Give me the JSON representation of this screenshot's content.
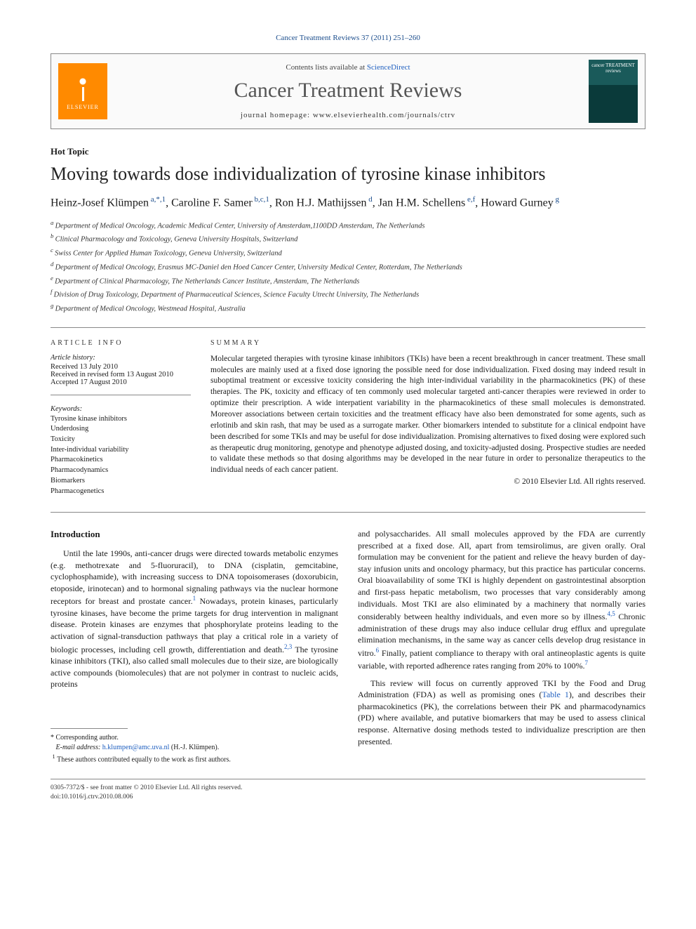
{
  "citation": "Cancer Treatment Reviews 37 (2011) 251–260",
  "header": {
    "contents_prefix": "Contents lists available at ",
    "sciencedirect": "ScienceDirect",
    "journal": "Cancer Treatment Reviews",
    "homepage_prefix": "journal homepage: ",
    "homepage_url": "www.elsevierhealth.com/journals/ctrv",
    "elsevier_label": "ELSEVIER",
    "cover_text": "cancer TREATMENT reviews"
  },
  "section_label": "Hot Topic",
  "title": "Moving towards dose individualization of tyrosine kinase inhibitors",
  "authors_html": "Heinz-Josef Klümpen|a,*,1|, Caroline F. Samer|b,c,1|, Ron H.J. Mathijssen|d|, Jan H.M. Schellens|e,f|, Howard Gurney|g|",
  "authors": [
    {
      "name": "Heinz-Josef Klümpen",
      "sup": "a,*,1"
    },
    {
      "name": "Caroline F. Samer",
      "sup": "b,c,1"
    },
    {
      "name": "Ron H.J. Mathijssen",
      "sup": "d"
    },
    {
      "name": "Jan H.M. Schellens",
      "sup": "e,f"
    },
    {
      "name": "Howard Gurney",
      "sup": "g"
    }
  ],
  "affiliations": [
    {
      "key": "a",
      "text": "Department of Medical Oncology, Academic Medical Center, University of Amsterdam,1100DD Amsterdam, The Netherlands"
    },
    {
      "key": "b",
      "text": "Clinical Pharmacology and Toxicology, Geneva University Hospitals, Switzerland"
    },
    {
      "key": "c",
      "text": "Swiss Center for Applied Human Toxicology, Geneva University, Switzerland"
    },
    {
      "key": "d",
      "text": "Department of Medical Oncology, Erasmus MC-Daniel den Hoed Cancer Center, University Medical Center, Rotterdam, The Netherlands"
    },
    {
      "key": "e",
      "text": "Department of Clinical Pharmacology, The Netherlands Cancer Institute, Amsterdam, The Netherlands"
    },
    {
      "key": "f",
      "text": "Division of Drug Toxicology, Department of Pharmaceutical Sciences, Science Faculty Utrecht University, The Netherlands"
    },
    {
      "key": "g",
      "text": "Department of Medical Oncology, Westmead Hospital, Australia"
    }
  ],
  "info_headings": {
    "article_info": "ARTICLE INFO",
    "summary": "SUMMARY"
  },
  "history": {
    "label": "Article history:",
    "received": "Received 13 July 2010",
    "revised": "Received in revised form 13 August 2010",
    "accepted": "Accepted 17 August 2010"
  },
  "keywords": {
    "label": "Keywords:",
    "items": [
      "Tyrosine kinase inhibitors",
      "Underdosing",
      "Toxicity",
      "Inter-individual variability",
      "Pharmacokinetics",
      "Pharmacodynamics",
      "Biomarkers",
      "Pharmacogenetics"
    ]
  },
  "summary": "Molecular targeted therapies with tyrosine kinase inhibitors (TKIs) have been a recent breakthrough in cancer treatment. These small molecules are mainly used at a fixed dose ignoring the possible need for dose individualization. Fixed dosing may indeed result in suboptimal treatment or excessive toxicity considering the high inter-individual variability in the pharmacokinetics (PK) of these therapies. The PK, toxicity and efficacy of ten commonly used molecular targeted anti-cancer therapies were reviewed in order to optimize their prescription. A wide interpatient variability in the pharmacokinetics of these small molecules is demonstrated. Moreover associations between certain toxicities and the treatment efficacy have also been demonstrated for some agents, such as erlotinib and skin rash, that may be used as a surrogate marker. Other biomarkers intended to substitute for a clinical endpoint have been described for some TKIs and may be useful for dose individualization. Promising alternatives to fixed dosing were explored such as therapeutic drug monitoring, genotype and phenotype adjusted dosing, and toxicity-adjusted dosing. Prospective studies are needed to validate these methods so that dosing algorithms may be developed in the near future in order to personalize therapeutics to the individual needs of each cancer patient.",
  "copyright": "© 2010 Elsevier Ltd. All rights reserved.",
  "body": {
    "heading": "Introduction",
    "col1_p1": "Until the late 1990s, anti-cancer drugs were directed towards metabolic enzymes (e.g. methotrexate and 5-fluoruracil), to DNA (cisplatin, gemcitabine, cyclophosphamide), with increasing success to DNA topoisomerases (doxorubicin, etoposide, irinotecan) and to hormonal signaling pathways via the nuclear hormone receptors for breast and prostate cancer.",
    "col1_p1_ref": "1",
    "col1_p1b": " Nowadays, protein kinases, particularly tyrosine kinases, have become the prime targets for drug intervention in malignant disease. Protein kinases are enzymes that phosphorylate proteins leading to the activation of signal-transduction pathways that play a critical role in a variety of biologic processes, including cell growth, differentiation and death.",
    "col1_p1_ref2": "2,3",
    "col1_p1c": " The tyrosine kinase inhibitors (TKI), also called small molecules due to their size, are biologically active compounds (biomolecules) that are not polymer in contrast to nucleic acids, proteins",
    "col2_p1": "and polysaccharides. All small molecules approved by the FDA are currently prescribed at a fixed dose. All, apart from temsirolimus, are given orally. Oral formulation may be convenient for the patient and relieve the heavy burden of day-stay infusion units and oncology pharmacy, but this practice has particular concerns. Oral bioavailability of some TKI is highly dependent on gastrointestinal absorption and first-pass hepatic metabolism, two processes that vary considerably among individuals. Most TKI are also eliminated by a machinery that normally varies considerably between healthy individuals, and even more so by illness.",
    "col2_ref45": "4,5",
    "col2_p1b": " Chronic administration of these drugs may also induce cellular drug efflux and upregulate elimination mechanisms, in the same way as cancer cells develop drug resistance in vitro.",
    "col2_ref6": "6",
    "col2_p1c": " Finally, patient compliance to therapy with oral antineoplastic agents is quite variable, with reported adherence rates ranging from 20% to 100%.",
    "col2_ref7": "7",
    "col2_p2a": "This review will focus on currently approved TKI by the Food and Drug Administration (FDA) as well as promising ones (",
    "col2_table1": "Table 1",
    "col2_p2b": "), and describes their pharmacokinetics (PK), the correlations between their PK and pharmacodynamics (PD) where available, and putative biomarkers that may be used to assess clinical response. Alternative dosing methods tested to individualize prescription are then presented."
  },
  "footnotes": {
    "corr_label": "* Corresponding author.",
    "email_label": "E-mail address: ",
    "email": "h.klumpen@amc.uva.nl",
    "email_owner": " (H.-J. Klümpen).",
    "note1": "These authors contributed equally to the work as first authors.",
    "note1_marker": "1"
  },
  "bottom": {
    "line1": "0305-7372/$ - see front matter © 2010 Elsevier Ltd. All rights reserved.",
    "line2": "doi:10.1016/j.ctrv.2010.08.006"
  },
  "colors": {
    "link": "#2060c0",
    "citation": "#1b4d8c",
    "elsevier": "#ff8a00",
    "cover_top": "#1a5a5a",
    "cover_bottom": "#0a3a3a",
    "rule": "#888888"
  }
}
